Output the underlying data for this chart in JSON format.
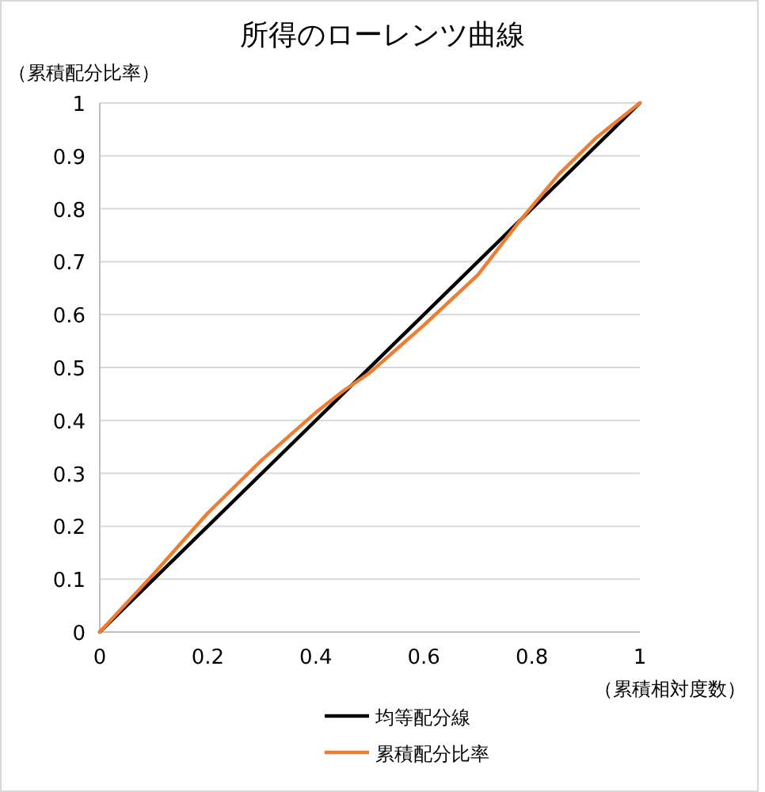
{
  "chart_data": {
    "type": "line",
    "title": "所得のローレンツ曲線",
    "xlabel": "（累積相対度数）",
    "ylabel": "（累積配分比率）",
    "xlim": [
      0,
      1
    ],
    "ylim": [
      0,
      1
    ],
    "xticks": [
      0,
      0.2,
      0.4,
      0.6,
      0.8,
      1
    ],
    "yticks": [
      0,
      0.1,
      0.2,
      0.3,
      0.4,
      0.5,
      0.6,
      0.7,
      0.8,
      0.9,
      1
    ],
    "grid": "y",
    "legend": "bottom",
    "marker": "none",
    "series": [
      {
        "name": "均等配分線",
        "color": "#000000",
        "x": [
          0,
          1
        ],
        "values": [
          0,
          1
        ]
      },
      {
        "name": "累積配分比率",
        "color": "#ed7d31",
        "x": [
          0,
          0.1,
          0.2,
          0.3,
          0.4,
          0.45,
          0.5,
          0.6,
          0.7,
          0.78,
          0.85,
          0.92,
          1
        ],
        "values": [
          0,
          0.11,
          0.225,
          0.325,
          0.415,
          0.455,
          0.49,
          0.58,
          0.675,
          0.78,
          0.865,
          0.935,
          1
        ]
      }
    ]
  }
}
